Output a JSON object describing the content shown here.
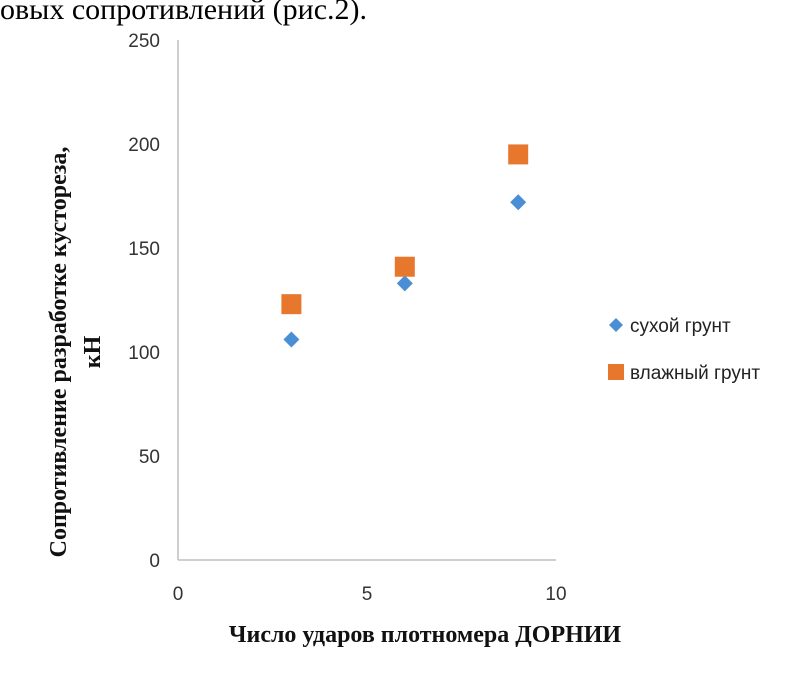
{
  "caption_fragment": "овых сопротивлений (рис.2).",
  "chart_data": {
    "type": "scatter",
    "title": "",
    "xlabel": "Число ударов плотномера ДОРНИИ",
    "ylabel_line1": "Сопротивление разработке кустореза,",
    "ylabel_line2": "кН",
    "xlim": [
      0,
      10
    ],
    "ylim": [
      0,
      250
    ],
    "x_ticks": [
      0,
      5,
      10
    ],
    "y_ticks": [
      0,
      50,
      100,
      150,
      200,
      250
    ],
    "legend_position": "right",
    "series": [
      {
        "name": "сухой грунт",
        "marker": "diamond",
        "color": "#4a8fd6",
        "points": [
          [
            3,
            106
          ],
          [
            6,
            133
          ],
          [
            9,
            172
          ]
        ]
      },
      {
        "name": "влажный грунт",
        "marker": "square",
        "color": "#e8772e",
        "points": [
          [
            3,
            123
          ],
          [
            6,
            141
          ],
          [
            9,
            195
          ]
        ]
      }
    ]
  }
}
